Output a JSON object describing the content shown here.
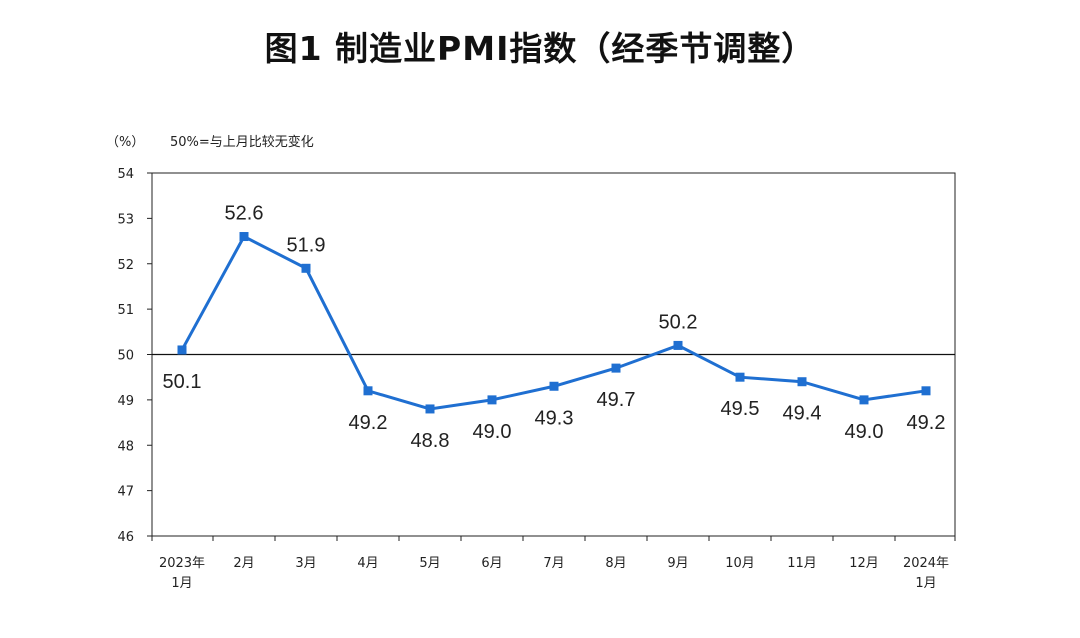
{
  "chart_data": {
    "type": "line",
    "title": "图1 制造业PMI指数（经季节调整）",
    "ylabel": "（%）",
    "note": "50%=与上月比较无变化",
    "ylim": [
      46,
      54
    ],
    "yticks": [
      46,
      47,
      48,
      49,
      50,
      51,
      52,
      53,
      54
    ],
    "reference_line": 50,
    "categories": [
      [
        "2023年",
        "1月"
      ],
      [
        "2月"
      ],
      [
        "3月"
      ],
      [
        "4月"
      ],
      [
        "5月"
      ],
      [
        "6月"
      ],
      [
        "7月"
      ],
      [
        "8月"
      ],
      [
        "9月"
      ],
      [
        "10月"
      ],
      [
        "11月"
      ],
      [
        "12月"
      ],
      [
        "2024年",
        "1月"
      ]
    ],
    "values": [
      50.1,
      52.6,
      51.9,
      49.2,
      48.8,
      49.0,
      49.3,
      49.7,
      50.2,
      49.5,
      49.4,
      49.0,
      49.2
    ],
    "labels": [
      "50.1",
      "52.6",
      "51.9",
      "49.2",
      "48.8",
      "49.0",
      "49.3",
      "49.7",
      "50.2",
      "49.5",
      "49.4",
      "49.0",
      "49.2"
    ],
    "label_positions": [
      "below",
      "above",
      "above",
      "below",
      "below",
      "below",
      "below",
      "below",
      "above",
      "below",
      "below",
      "below",
      "below"
    ],
    "series_color": "#1f6fd1",
    "grid": false
  }
}
